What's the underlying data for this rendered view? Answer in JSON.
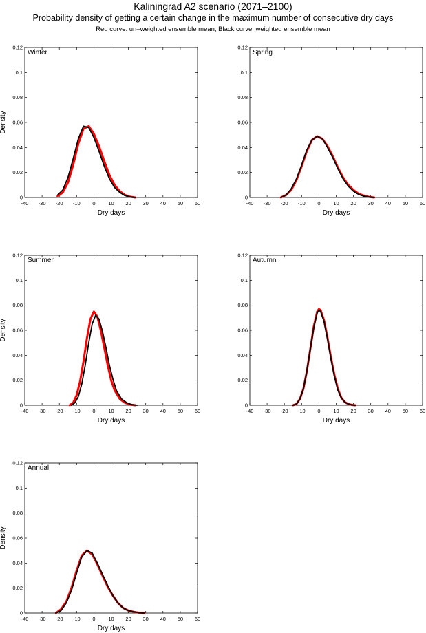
{
  "figure": {
    "title": "Kaliningrad A2 scenario (2071–2100)",
    "subtitle": "Probability density of getting a certain change in the maximum number of consecutive dry days",
    "caption": "Red curve: un–weighted ensemble mean, Black curve: weighted ensemble mean"
  },
  "colors": {
    "unweighted": "#ff0000",
    "weighted": "#000000",
    "axes": "#000000"
  },
  "chart_data": [
    {
      "type": "line",
      "panel_label": "Winter",
      "xlabel": "Dry days",
      "ylabel": "Density",
      "xlim": [
        -40,
        60
      ],
      "ylim": [
        0,
        0.12
      ],
      "xticks": [
        -40,
        -30,
        -20,
        -10,
        0,
        10,
        20,
        30,
        40,
        50,
        60
      ],
      "yticks": [
        0,
        0.02,
        0.04,
        0.06,
        0.08,
        0.1,
        0.12
      ],
      "series": [
        {
          "color": "#ff0000",
          "x": [
            -21,
            -18,
            -15,
            -12,
            -9,
            -6,
            -3,
            0,
            3,
            6,
            9,
            12,
            15,
            18,
            21,
            24
          ],
          "y": [
            0.001,
            0.004,
            0.012,
            0.026,
            0.043,
            0.055,
            0.057,
            0.051,
            0.041,
            0.029,
            0.018,
            0.01,
            0.005,
            0.002,
            0.0006,
            0
          ]
        },
        {
          "color": "#000000",
          "x": [
            -21,
            -18,
            -15,
            -12,
            -9,
            -6,
            -3,
            0,
            3,
            6,
            9,
            12,
            15,
            18,
            21,
            24
          ],
          "y": [
            0.002,
            0.006,
            0.016,
            0.031,
            0.047,
            0.057,
            0.056,
            0.048,
            0.037,
            0.025,
            0.015,
            0.008,
            0.004,
            0.0015,
            0.0004,
            0
          ]
        }
      ]
    },
    {
      "type": "line",
      "panel_label": "Spring",
      "xlabel": "Dry days",
      "ylabel": "",
      "xlim": [
        -40,
        60
      ],
      "ylim": [
        0,
        0.12
      ],
      "xticks": [
        -40,
        -30,
        -20,
        -10,
        0,
        10,
        20,
        30,
        40,
        50,
        60
      ],
      "yticks": [
        0,
        0.02,
        0.04,
        0.06,
        0.08,
        0.1,
        0.12
      ],
      "series": [
        {
          "color": "#ff0000",
          "x": [
            -22,
            -19,
            -16,
            -13,
            -10,
            -7,
            -4,
            -1,
            2,
            5,
            8,
            11,
            14,
            17,
            20,
            23,
            26,
            29,
            32
          ],
          "y": [
            0,
            0.002,
            0.006,
            0.014,
            0.025,
            0.037,
            0.046,
            0.049,
            0.047,
            0.041,
            0.033,
            0.024,
            0.016,
            0.01,
            0.006,
            0.003,
            0.0015,
            0.0005,
            0
          ]
        },
        {
          "color": "#000000",
          "x": [
            -22,
            -19,
            -16,
            -13,
            -10,
            -7,
            -4,
            -1,
            2,
            5,
            8,
            11,
            14,
            17,
            20,
            23,
            26,
            29,
            32
          ],
          "y": [
            0,
            0.002,
            0.007,
            0.015,
            0.026,
            0.038,
            0.046,
            0.049,
            0.047,
            0.04,
            0.032,
            0.023,
            0.015,
            0.009,
            0.005,
            0.0025,
            0.001,
            0.0004,
            0
          ]
        }
      ]
    },
    {
      "type": "line",
      "panel_label": "Summer",
      "xlabel": "Dry days",
      "ylabel": "Density",
      "xlim": [
        -40,
        60
      ],
      "ylim": [
        0,
        0.12
      ],
      "xticks": [
        -40,
        -30,
        -20,
        -10,
        0,
        10,
        20,
        30,
        40,
        50,
        60
      ],
      "yticks": [
        0,
        0.02,
        0.04,
        0.06,
        0.08,
        0.1,
        0.12
      ],
      "series": [
        {
          "color": "#ff0000",
          "x": [
            -14,
            -12,
            -10,
            -8,
            -6,
            -4,
            -2,
            0,
            2,
            4,
            6,
            8,
            10,
            12,
            15,
            18,
            21,
            24
          ],
          "y": [
            0,
            0.002,
            0.008,
            0.019,
            0.035,
            0.054,
            0.069,
            0.075,
            0.071,
            0.06,
            0.046,
            0.032,
            0.02,
            0.012,
            0.005,
            0.002,
            0.0005,
            0
          ]
        },
        {
          "color": "#000000",
          "x": [
            -13,
            -11,
            -9,
            -7,
            -5,
            -3,
            -1,
            1,
            3,
            5,
            7,
            9,
            11,
            13,
            16,
            19,
            22,
            25
          ],
          "y": [
            0,
            0.002,
            0.007,
            0.017,
            0.032,
            0.05,
            0.065,
            0.072,
            0.069,
            0.059,
            0.046,
            0.032,
            0.021,
            0.012,
            0.005,
            0.002,
            0.0005,
            0
          ]
        }
      ]
    },
    {
      "type": "line",
      "panel_label": "Autumn",
      "xlabel": "Dry days",
      "ylabel": "",
      "xlim": [
        -40,
        60
      ],
      "ylim": [
        0,
        0.12
      ],
      "xticks": [
        -40,
        -30,
        -20,
        -10,
        0,
        10,
        20,
        30,
        40,
        50,
        60
      ],
      "yticks": [
        0,
        0.02,
        0.04,
        0.06,
        0.08,
        0.1,
        0.12
      ],
      "series": [
        {
          "color": "#ff0000",
          "x": [
            -15,
            -13,
            -11,
            -9,
            -7,
            -5,
            -3,
            -1,
            0,
            1,
            3,
            5,
            7,
            9,
            11,
            13,
            15,
            17,
            19,
            21
          ],
          "y": [
            0,
            0.001,
            0.005,
            0.013,
            0.027,
            0.045,
            0.063,
            0.075,
            0.077,
            0.076,
            0.068,
            0.054,
            0.038,
            0.024,
            0.013,
            0.006,
            0.0025,
            0.001,
            0.0003,
            0
          ]
        },
        {
          "color": "#000000",
          "x": [
            -15,
            -13,
            -11,
            -9,
            -7,
            -5,
            -3,
            -1,
            0,
            1,
            3,
            5,
            7,
            9,
            11,
            13,
            15,
            17,
            19,
            21
          ],
          "y": [
            0,
            0.001,
            0.005,
            0.013,
            0.027,
            0.045,
            0.062,
            0.074,
            0.076,
            0.075,
            0.067,
            0.053,
            0.037,
            0.023,
            0.012,
            0.006,
            0.0025,
            0.001,
            0.0003,
            0
          ]
        }
      ]
    },
    {
      "type": "line",
      "panel_label": "Annual",
      "xlabel": "Dry days",
      "ylabel": "Density",
      "xlim": [
        -40,
        60
      ],
      "ylim": [
        0,
        0.12
      ],
      "xticks": [
        -40,
        -30,
        -20,
        -10,
        0,
        10,
        20,
        30,
        40,
        50,
        60
      ],
      "yticks": [
        0,
        0.02,
        0.04,
        0.06,
        0.08,
        0.1,
        0.12
      ],
      "series": [
        {
          "color": "#ff0000",
          "x": [
            -22,
            -19,
            -16,
            -13,
            -10,
            -7,
            -4,
            -1,
            2,
            5,
            8,
            11,
            14,
            17,
            20,
            23,
            26,
            29
          ],
          "y": [
            0,
            0.003,
            0.009,
            0.02,
            0.034,
            0.046,
            0.05,
            0.047,
            0.039,
            0.03,
            0.021,
            0.014,
            0.008,
            0.004,
            0.002,
            0.001,
            0.0003,
            0
          ]
        },
        {
          "color": "#000000",
          "x": [
            -22,
            -19,
            -16,
            -13,
            -10,
            -7,
            -4,
            -1,
            2,
            5,
            8,
            11,
            14,
            17,
            20,
            23,
            26,
            29
          ],
          "y": [
            0,
            0.002,
            0.008,
            0.018,
            0.032,
            0.045,
            0.05,
            0.048,
            0.04,
            0.031,
            0.022,
            0.014,
            0.008,
            0.004,
            0.002,
            0.001,
            0.0003,
            0
          ]
        }
      ]
    }
  ]
}
